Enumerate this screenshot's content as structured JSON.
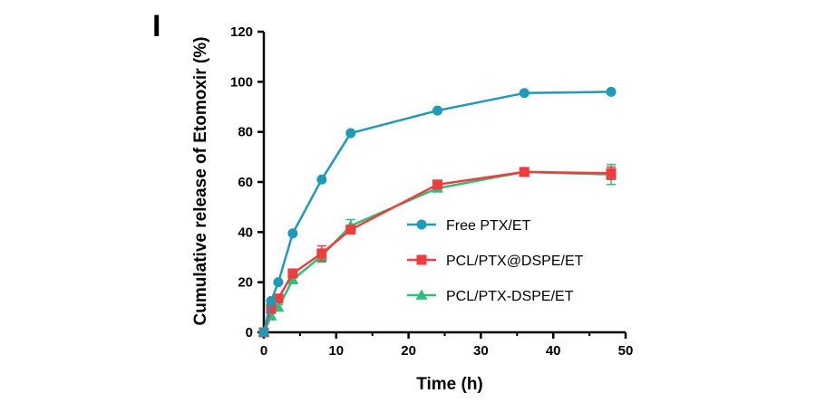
{
  "panel_label": "I",
  "colors": {
    "free": "#1F9AB9",
    "pcl_at": "#F03C3C",
    "pcl_dash": "#2DC07B",
    "axis": "#000000"
  },
  "chart_data": {
    "type": "line",
    "xlabel": "Time (h)",
    "ylabel": "Cumulative release of Etomoxir (%)",
    "xlim": [
      0,
      50
    ],
    "ylim": [
      0,
      120
    ],
    "x_ticks": [
      0,
      10,
      20,
      30,
      40,
      50
    ],
    "y_ticks": [
      0,
      20,
      40,
      60,
      80,
      100,
      120
    ],
    "x_tick_labels": [
      "0",
      "10",
      "20",
      "30",
      "40",
      "50"
    ],
    "y_tick_labels": [
      "0",
      "20",
      "40",
      "60",
      "80",
      "100",
      "120"
    ],
    "grid": false,
    "legend_position": "center-right",
    "series": [
      {
        "name": "Free PTX/ET",
        "marker": "circle",
        "color_key": "free",
        "x": [
          0,
          1,
          2,
          4,
          8,
          12,
          24,
          36,
          48
        ],
        "y": [
          0,
          12.5,
          20,
          39.5,
          61,
          79.5,
          88.5,
          95.5,
          96
        ],
        "err": [
          0,
          0.5,
          0.5,
          0.5,
          0.5,
          0.5,
          0.5,
          0.5,
          0.5
        ]
      },
      {
        "name": "PCL/PTX@DSPE/ET",
        "marker": "square",
        "color_key": "pcl_at",
        "x": [
          0,
          1,
          2,
          4,
          8,
          12,
          24,
          36,
          48
        ],
        "y": [
          0,
          9.5,
          13.5,
          23.5,
          31.5,
          41,
          59,
          64,
          63.5
        ],
        "err": [
          0,
          1,
          1,
          1.5,
          3,
          1.5,
          1,
          1,
          2.5
        ]
      },
      {
        "name": "PCL/PTX-DSPE/ET",
        "marker": "triangle",
        "color_key": "pcl_dash",
        "x": [
          0,
          1,
          2,
          4,
          8,
          12,
          24,
          36,
          48
        ],
        "y": [
          0,
          6.5,
          10,
          21,
          30.5,
          42.5,
          57.5,
          64,
          63
        ],
        "err": [
          0,
          1,
          1,
          1.5,
          2.5,
          2.5,
          1,
          1,
          4
        ]
      }
    ]
  }
}
